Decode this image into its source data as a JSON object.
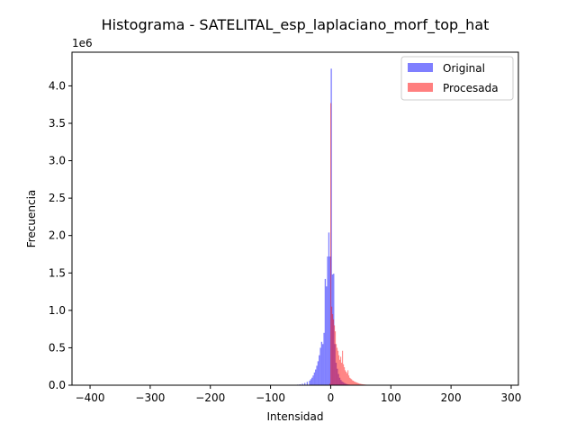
{
  "chart_data": {
    "type": "bar",
    "title": "Histograma - SATELITAL_esp_laplaciano_morf_top_hat",
    "xlabel": "Intensidad",
    "ylabel": "Frecuencia",
    "y_offset_label": "1e6",
    "xlim": [
      -430,
      312
    ],
    "ylim": [
      0,
      4.45
    ],
    "xticks": [
      -400,
      -300,
      -200,
      -100,
      0,
      100,
      200,
      300
    ],
    "xtick_labels": [
      "−400",
      "−300",
      "−200",
      "−100",
      "0",
      "100",
      "200",
      "300"
    ],
    "yticks": [
      0.0,
      0.5,
      1.0,
      1.5,
      2.0,
      2.5,
      3.0,
      3.5,
      4.0
    ],
    "ytick_labels": [
      "0.0",
      "0.5",
      "1.0",
      "1.5",
      "2.0",
      "2.5",
      "3.0",
      "3.5",
      "4.0"
    ],
    "grid": false,
    "legend_position": "top-right",
    "series": [
      {
        "name": "Original",
        "color": "#0000ff",
        "alpha": 0.5,
        "bin_width": 2,
        "bins": [
          [
            -60,
            0.005
          ],
          [
            -56,
            0.008
          ],
          [
            -52,
            0.012
          ],
          [
            -48,
            0.02
          ],
          [
            -44,
            0.03
          ],
          [
            -40,
            0.045
          ],
          [
            -36,
            0.06
          ],
          [
            -34,
            0.08
          ],
          [
            -32,
            0.1
          ],
          [
            -30,
            0.13
          ],
          [
            -28,
            0.17
          ],
          [
            -26,
            0.21
          ],
          [
            -24,
            0.26
          ],
          [
            -22,
            0.32
          ],
          [
            -20,
            0.4
          ],
          [
            -18,
            0.5
          ],
          [
            -16,
            0.58
          ],
          [
            -14,
            0.55
          ],
          [
            -12,
            0.7
          ],
          [
            -10,
            1.42
          ],
          [
            -8,
            1.32
          ],
          [
            -6,
            1.72
          ],
          [
            -4,
            2.04
          ],
          [
            -2,
            1.72
          ],
          [
            0,
            4.23
          ],
          [
            2,
            1.48
          ],
          [
            4,
            1.49
          ],
          [
            6,
            0.55
          ],
          [
            8,
            0.3
          ],
          [
            10,
            0.22
          ],
          [
            12,
            0.15
          ],
          [
            14,
            0.1
          ],
          [
            16,
            0.07
          ],
          [
            18,
            0.05
          ],
          [
            20,
            0.04
          ],
          [
            22,
            0.03
          ],
          [
            24,
            0.02
          ],
          [
            26,
            0.015
          ],
          [
            28,
            0.01
          ],
          [
            30,
            0.008
          ]
        ]
      },
      {
        "name": "Procesada",
        "color": "#ff0000",
        "alpha": 0.5,
        "bin_width": 1.5,
        "bins": [
          [
            -2,
            0.02
          ],
          [
            -0.5,
            3.77
          ],
          [
            1,
            1.05
          ],
          [
            2.5,
            0.95
          ],
          [
            4,
            0.88
          ],
          [
            5.5,
            0.8
          ],
          [
            7,
            0.72
          ],
          [
            8.5,
            0.55
          ],
          [
            10,
            0.5
          ],
          [
            11.5,
            0.46
          ],
          [
            13,
            0.4
          ],
          [
            14.5,
            0.34
          ],
          [
            16,
            0.38
          ],
          [
            17.5,
            0.3
          ],
          [
            19,
            0.46
          ],
          [
            20.5,
            0.28
          ],
          [
            22,
            0.24
          ],
          [
            23.5,
            0.2
          ],
          [
            25,
            0.18
          ],
          [
            26.5,
            0.16
          ],
          [
            28,
            0.2
          ],
          [
            29.5,
            0.13
          ],
          [
            31,
            0.1
          ],
          [
            32.5,
            0.09
          ],
          [
            34,
            0.08
          ],
          [
            35.5,
            0.065
          ],
          [
            37,
            0.06
          ],
          [
            38.5,
            0.05
          ],
          [
            40,
            0.045
          ],
          [
            41.5,
            0.04
          ],
          [
            43,
            0.035
          ],
          [
            44.5,
            0.03
          ],
          [
            46,
            0.025
          ],
          [
            47.5,
            0.02
          ],
          [
            49,
            0.018
          ],
          [
            50.5,
            0.015
          ],
          [
            52,
            0.013
          ],
          [
            53.5,
            0.011
          ],
          [
            55,
            0.01
          ],
          [
            56.5,
            0.008
          ],
          [
            58,
            0.007
          ],
          [
            59.5,
            0.006
          ],
          [
            61,
            0.005
          ],
          [
            62.5,
            0.004
          ],
          [
            64,
            0.003
          ],
          [
            65.5,
            0.002
          ]
        ]
      }
    ]
  }
}
